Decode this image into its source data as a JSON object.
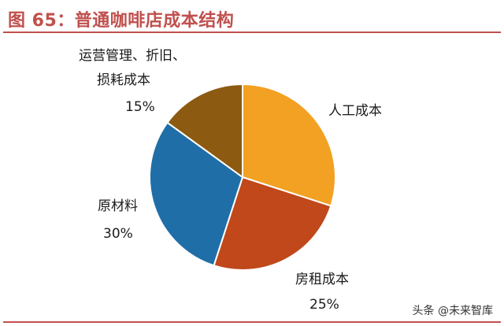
{
  "header": {
    "title": "图 65：普通咖啡店成本结构"
  },
  "watermark": "头条 @未来智库",
  "colors": {
    "accent": "#c0504d",
    "labor": "#f2a122",
    "rent": "#c0481a",
    "materials": "#1f6ea8",
    "operations": "#8c5a10"
  },
  "chart_data": {
    "type": "pie",
    "title": "普通咖啡店成本结构",
    "series": [
      {
        "slices": [
          {
            "label": "人工成本",
            "value": 30,
            "display_value": "",
            "color": "#f2a122"
          },
          {
            "label": "房租成本",
            "value": 25,
            "display_value": "25%",
            "color": "#c0481a"
          },
          {
            "label": "原材料",
            "value": 30,
            "display_value": "30%",
            "color": "#1f6ea8"
          },
          {
            "label": "运营管理、折旧、损耗成本",
            "value": 15,
            "display_value": "15%",
            "color": "#8c5a10"
          }
        ]
      }
    ]
  }
}
